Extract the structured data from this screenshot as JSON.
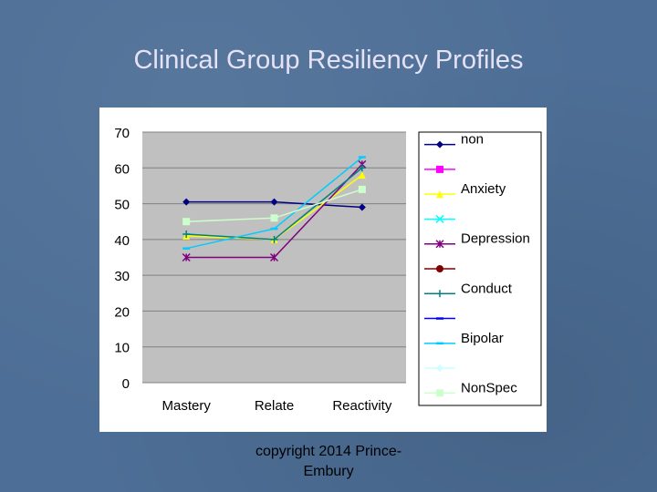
{
  "slide": {
    "title": "Clinical Group Resiliency Profiles",
    "footer_line1": "copyright 2014 Prince-",
    "footer_line2": "Embury"
  },
  "chart_data": {
    "type": "line",
    "title": "Clinical Group Resiliency Profiles",
    "xlabel": "",
    "ylabel": "",
    "categories": [
      "Mastery",
      "Relate",
      "Reactivity"
    ],
    "ylim": [
      0,
      70
    ],
    "yticks": [
      0,
      10,
      20,
      30,
      40,
      50,
      60,
      70
    ],
    "grid": true,
    "legend_position": "right",
    "plot_background": "#c0c0c0",
    "series": [
      {
        "name": "non",
        "color": "#000080",
        "marker": "diamond",
        "values": [
          50.5,
          50.5,
          49
        ]
      },
      {
        "name": "",
        "color": "#ff00ff",
        "marker": "square",
        "values": [
          null,
          null,
          null
        ]
      },
      {
        "name": "Anxiety",
        "color": "#ffff00",
        "marker": "triangle",
        "values": [
          41,
          40,
          58
        ]
      },
      {
        "name": "",
        "color": "#00ffff",
        "marker": "x",
        "values": [
          null,
          null,
          null
        ]
      },
      {
        "name": "Depression",
        "color": "#800080",
        "marker": "star",
        "values": [
          35,
          35,
          61
        ]
      },
      {
        "name": "",
        "color": "#800000",
        "marker": "circle",
        "values": [
          null,
          null,
          null
        ]
      },
      {
        "name": "Conduct",
        "color": "#008080",
        "marker": "plus",
        "values": [
          41.5,
          40,
          60
        ]
      },
      {
        "name": "",
        "color": "#0000ff",
        "marker": "dash",
        "values": [
          null,
          null,
          null
        ]
      },
      {
        "name": "Bipolar",
        "color": "#00ccff",
        "marker": "dash",
        "values": [
          37.5,
          43,
          63
        ]
      },
      {
        "name": "",
        "color": "#ccffff",
        "marker": "diamond",
        "values": [
          null,
          null,
          null
        ]
      },
      {
        "name": "NonSpec",
        "color": "#ccffcc",
        "marker": "square",
        "values": [
          45,
          46,
          54
        ]
      }
    ]
  }
}
